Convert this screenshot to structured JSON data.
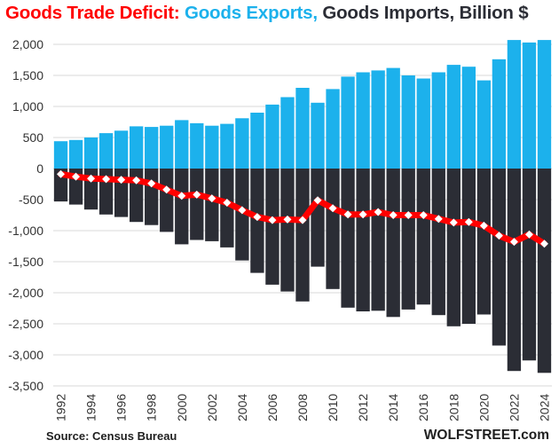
{
  "header": {
    "title_part1": "Goods Trade Deficit:",
    "title_part2": "Goods Exports,",
    "title_part3": "Goods Imports, Billion $"
  },
  "footer": {
    "source": "Source: Census Bureau",
    "brand": "WOLFSTREET.com"
  },
  "colors": {
    "exports": "#1cb1ec",
    "imports": "#2b2d35",
    "deficit_line": "#ff0000",
    "deficit_marker": "#ffffff"
  },
  "chart_data": {
    "type": "bar",
    "title": "Goods Trade Deficit: Goods Exports, Goods Imports, Billion $",
    "ylim": [
      -3500,
      2000
    ],
    "yticks": [
      2000,
      1500,
      1000,
      500,
      0,
      -500,
      -1000,
      -1500,
      -2000,
      -2500,
      -3000,
      -3500
    ],
    "ytick_labels": [
      "2,000",
      "1,500",
      "1,000",
      "500",
      "0",
      "-500",
      "-1,000",
      "-1,500",
      "-2,000",
      "-2,500",
      "-3,000",
      "-3,500"
    ],
    "categories": [
      "1992",
      "1993",
      "1994",
      "1995",
      "1996",
      "1997",
      "1998",
      "1999",
      "2000",
      "2001",
      "2002",
      "2003",
      "2004",
      "2005",
      "2006",
      "2007",
      "2008",
      "2009",
      "2010",
      "2011",
      "2012",
      "2013",
      "2014",
      "2015",
      "2016",
      "2017",
      "2018",
      "2019",
      "2020",
      "2021",
      "2022",
      "2023",
      "2024"
    ],
    "xtick_labels": [
      "1992",
      "1994",
      "1996",
      "1998",
      "2000",
      "2002",
      "2004",
      "2006",
      "2008",
      "2010",
      "2012",
      "2014",
      "2016",
      "2018",
      "2020",
      "2022",
      "2024"
    ],
    "grid": true,
    "series": [
      {
        "name": "Goods Exports",
        "values": [
          440,
          460,
          500,
          570,
          610,
          680,
          670,
          690,
          780,
          730,
          690,
          720,
          810,
          900,
          1030,
          1150,
          1300,
          1060,
          1280,
          1480,
          1550,
          1580,
          1620,
          1500,
          1450,
          1550,
          1670,
          1640,
          1420,
          1760,
          2070,
          2030,
          2070
        ]
      },
      {
        "name": "Goods Imports",
        "values": [
          -530,
          -580,
          -660,
          -740,
          -780,
          -860,
          -910,
          -1020,
          -1220,
          -1150,
          -1170,
          -1270,
          -1480,
          -1680,
          -1870,
          -1980,
          -2140,
          -1580,
          -1940,
          -2240,
          -2300,
          -2290,
          -2390,
          -2270,
          -2190,
          -2360,
          -2540,
          -2500,
          -2350,
          -2850,
          -3260,
          -3090,
          -3290
        ]
      },
      {
        "name": "Goods Trade Deficit",
        "type": "line",
        "values": [
          -90,
          -130,
          -160,
          -170,
          -180,
          -190,
          -240,
          -340,
          -440,
          -420,
          -480,
          -550,
          -670,
          -780,
          -830,
          -820,
          -830,
          -510,
          -640,
          -740,
          -740,
          -700,
          -750,
          -750,
          -750,
          -810,
          -870,
          -860,
          -920,
          -1080,
          -1180,
          -1060,
          -1210
        ]
      }
    ]
  }
}
